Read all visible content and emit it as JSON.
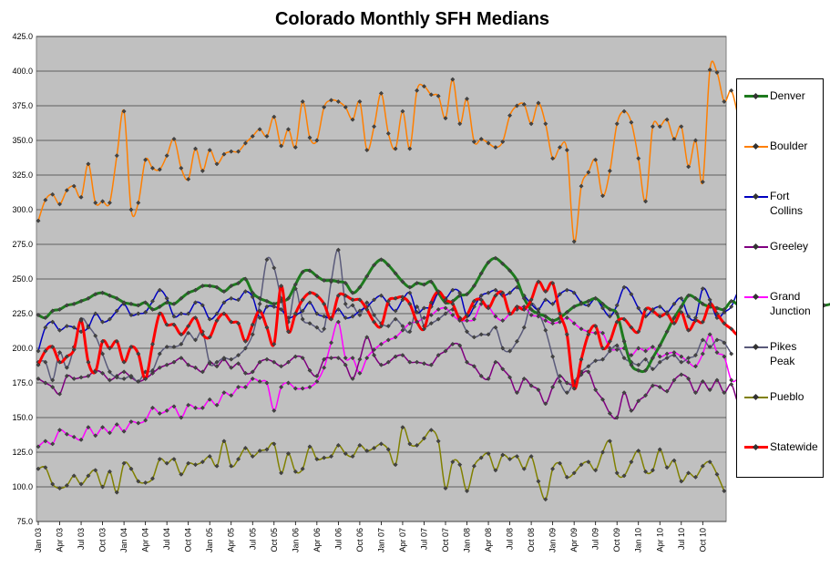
{
  "chart_data": {
    "type": "line",
    "title": "Colorado Monthly SFH Medians",
    "xlabel": "",
    "ylabel": "",
    "ylim": [
      75,
      425
    ],
    "y_ticks": [
      "75.0",
      "100.0",
      "125.0",
      "150.0",
      "175.0",
      "200.0",
      "225.0",
      "250.0",
      "275.0",
      "300.0",
      "325.0",
      "350.0",
      "375.0",
      "400.0",
      "425.0"
    ],
    "x_tick_labels": [
      "Jan 03",
      "Apr 03",
      "Jul 03",
      "Oct 03",
      "Jan 04",
      "Apr 04",
      "Jul 04",
      "Oct 04",
      "Jan 05",
      "Apr 05",
      "Jul 05",
      "Oct 05",
      "Jan 06",
      "Apr 06",
      "Jul 06",
      "Oct 06",
      "Jan 07",
      "Apr 07",
      "Jul 07",
      "Oct 07",
      "Jan 08",
      "Apr 08",
      "Jul 08",
      "Oct 08",
      "Jan 09",
      "Apr 09",
      "Jul 09",
      "Oct 09",
      "Jan 10",
      "Apr 10",
      "Jul 10",
      "Oct 10"
    ],
    "grid": "horizontal",
    "legend_position": "right",
    "plot_background": "#c0c0c0",
    "series": [
      {
        "name": "Denver",
        "color": "#1e7a1e",
        "width": 3,
        "values": [
          224,
          222,
          227,
          228,
          231,
          232,
          234,
          236,
          239,
          240,
          238,
          236,
          233,
          232,
          231,
          233,
          228,
          230,
          233,
          232,
          236,
          240,
          242,
          245,
          245,
          244,
          241,
          245,
          247,
          250,
          240,
          236,
          234,
          232,
          234,
          236,
          246,
          255,
          256,
          252,
          249,
          249,
          248,
          247,
          240,
          244,
          252,
          260,
          264,
          260,
          254,
          248,
          244,
          247,
          246,
          248,
          240,
          233,
          234,
          238,
          239,
          245,
          254,
          262,
          265,
          261,
          256,
          249,
          236,
          228,
          225,
          223,
          220,
          222,
          226,
          230,
          232,
          234,
          236,
          232,
          228,
          225,
          205,
          188,
          184,
          184,
          193,
          202,
          212,
          222,
          230,
          238,
          236,
          232,
          230,
          229,
          228,
          234,
          231,
          228,
          226,
          228,
          232,
          236,
          240,
          244,
          236,
          232,
          233,
          232,
          231,
          232
        ]
      },
      {
        "name": "Boulder",
        "color": "#ff7f00",
        "width": 1.5,
        "values": [
          292,
          307,
          311,
          304,
          314,
          317,
          309,
          333,
          305,
          306,
          305,
          339,
          371,
          300,
          305,
          336,
          330,
          329,
          339,
          351,
          330,
          322,
          344,
          328,
          343,
          333,
          340,
          342,
          342,
          348,
          353,
          358,
          353,
          367,
          346,
          358,
          345,
          378,
          352,
          350,
          374,
          379,
          378,
          374,
          365,
          378,
          343,
          360,
          384,
          355,
          344,
          371,
          344,
          386,
          389,
          383,
          382,
          366,
          394,
          362,
          380,
          349,
          351,
          348,
          345,
          349,
          368,
          375,
          376,
          362,
          377,
          362,
          337,
          345,
          343,
          277,
          317,
          327,
          336,
          310,
          328,
          362,
          371,
          363,
          337,
          306,
          360,
          360,
          365,
          351,
          360,
          331,
          350,
          320,
          401,
          399,
          378,
          386,
          366
        ]
      },
      {
        "name": "Fort Collins",
        "color": "#0000c0",
        "width": 1.5,
        "values": [
          198,
          215,
          219,
          213,
          216,
          215,
          212,
          215,
          225,
          219,
          221,
          227,
          232,
          224,
          225,
          226,
          234,
          242,
          236,
          223,
          225,
          225,
          233,
          231,
          221,
          225,
          233,
          236,
          235,
          241,
          237,
          222,
          230,
          230,
          228,
          222,
          224,
          227,
          233,
          225,
          223,
          222,
          228,
          222,
          223,
          227,
          230,
          235,
          238,
          232,
          227,
          235,
          240,
          226,
          229,
          230,
          240,
          236,
          242,
          240,
          223,
          230,
          238,
          240,
          242,
          238,
          240,
          244,
          238,
          232,
          228,
          235,
          232,
          239,
          242,
          240,
          233,
          231,
          236,
          229,
          223,
          231,
          244,
          239,
          229,
          223,
          228,
          230,
          226,
          232,
          236,
          223,
          222,
          243,
          235,
          222,
          226,
          230,
          241,
          237,
          234,
          268,
          230,
          226,
          240
        ]
      },
      {
        "name": "Greeley",
        "color": "#800080",
        "width": 1.5,
        "values": [
          178,
          175,
          172,
          167,
          180,
          178,
          179,
          180,
          184,
          182,
          177,
          180,
          183,
          179,
          176,
          178,
          182,
          186,
          188,
          190,
          193,
          188,
          186,
          183,
          190,
          187,
          192,
          186,
          189,
          182,
          183,
          190,
          192,
          190,
          187,
          190,
          194,
          193,
          184,
          180,
          192,
          193,
          193,
          188,
          178,
          192,
          208,
          195,
          188,
          190,
          194,
          195,
          190,
          190,
          189,
          188,
          195,
          198,
          203,
          202,
          190,
          187,
          180,
          178,
          190,
          185,
          179,
          168,
          178,
          173,
          170,
          160,
          172,
          180,
          175,
          174,
          181,
          183,
          170,
          163,
          153,
          150,
          168,
          155,
          162,
          166,
          173,
          172,
          169,
          177,
          181,
          178,
          168,
          176,
          170,
          177,
          168,
          174,
          160,
          161,
          178,
          184,
          182,
          178,
          175,
          173,
          177,
          160
        ]
      },
      {
        "name": "Grand Junction",
        "color": "#ff00ff",
        "width": 1.5,
        "values": [
          129,
          133,
          131,
          141,
          138,
          136,
          134,
          143,
          137,
          143,
          139,
          145,
          140,
          147,
          146,
          148,
          157,
          153,
          155,
          158,
          150,
          159,
          157,
          157,
          163,
          159,
          168,
          166,
          172,
          172,
          178,
          176,
          175,
          155,
          172,
          175,
          171,
          171,
          172,
          176,
          186,
          204,
          219,
          193,
          193,
          182,
          193,
          199,
          203,
          206,
          208,
          213,
          218,
          219,
          222,
          224,
          228,
          229,
          224,
          220,
          220,
          221,
          232,
          230,
          223,
          220,
          225,
          228,
          230,
          224,
          223,
          220,
          218,
          219,
          222,
          218,
          214,
          212,
          211,
          211,
          200,
          199,
          200,
          195,
          200,
          198,
          201,
          194,
          196,
          197,
          194,
          190,
          187,
          196,
          210,
          197,
          194,
          177,
          178,
          180
        ]
      },
      {
        "name": "Pikes Peak",
        "color": "#5a5a7a",
        "width": 1.5,
        "values": [
          190,
          190,
          177,
          197,
          186,
          201,
          221,
          216,
          209,
          196,
          183,
          179,
          178,
          180,
          176,
          183,
          184,
          196,
          201,
          201,
          203,
          211,
          206,
          212,
          189,
          190,
          193,
          192,
          195,
          200,
          210,
          232,
          264,
          258,
          236,
          219,
          243,
          221,
          218,
          215,
          214,
          248,
          271,
          232,
          231,
          224,
          233,
          224,
          218,
          216,
          221,
          216,
          212,
          230,
          216,
          218,
          221,
          225,
          228,
          222,
          212,
          208,
          210,
          210,
          215,
          200,
          198,
          205,
          215,
          232,
          226,
          213,
          194,
          176,
          168,
          176,
          183,
          187,
          191,
          192,
          198,
          202,
          193,
          190,
          188,
          192,
          185,
          190,
          193,
          195,
          190,
          193,
          195,
          206,
          201,
          206,
          204,
          196
        ]
      },
      {
        "name": "Pueblo",
        "color": "#808000",
        "width": 1.5,
        "values": [
          113,
          114,
          102,
          99,
          101,
          108,
          102,
          108,
          112,
          100,
          111,
          96,
          117,
          113,
          104,
          103,
          106,
          120,
          117,
          120,
          109,
          117,
          116,
          118,
          122,
          115,
          133,
          115,
          120,
          128,
          122,
          126,
          127,
          131,
          110,
          124,
          111,
          113,
          129,
          120,
          121,
          122,
          130,
          124,
          122,
          130,
          126,
          128,
          131,
          127,
          116,
          143,
          131,
          130,
          135,
          141,
          133,
          99,
          118,
          116,
          97,
          115,
          121,
          124,
          112,
          123,
          120,
          122,
          113,
          122,
          104,
          91,
          113,
          117,
          107,
          110,
          116,
          118,
          112,
          125,
          133,
          110,
          108,
          118,
          126,
          111,
          112,
          127,
          114,
          119,
          104,
          110,
          107,
          115,
          118,
          109,
          97
        ]
      },
      {
        "name": "Statewide",
        "color": "#ff0000",
        "width": 3,
        "values": [
          188,
          198,
          201,
          190,
          194,
          199,
          220,
          190,
          183,
          205,
          200,
          205,
          190,
          201,
          196,
          178,
          203,
          225,
          217,
          217,
          210,
          216,
          222,
          210,
          208,
          220,
          225,
          219,
          218,
          205,
          217,
          227,
          215,
          203,
          245,
          212,
          225,
          235,
          240,
          238,
          232,
          221,
          238,
          238,
          235,
          235,
          228,
          219,
          216,
          234,
          236,
          237,
          232,
          219,
          214,
          233,
          241,
          235,
          232,
          221,
          224,
          234,
          235,
          229,
          238,
          240,
          225,
          230,
          228,
          235,
          248,
          241,
          247,
          225,
          210,
          171,
          192,
          210,
          216,
          200,
          205,
          219,
          221,
          215,
          212,
          228,
          227,
          223,
          225,
          218,
          226,
          213,
          220,
          219,
          232,
          225,
          218,
          214,
          210,
          220,
          223,
          215,
          218,
          215,
          210,
          206
        ]
      }
    ]
  }
}
